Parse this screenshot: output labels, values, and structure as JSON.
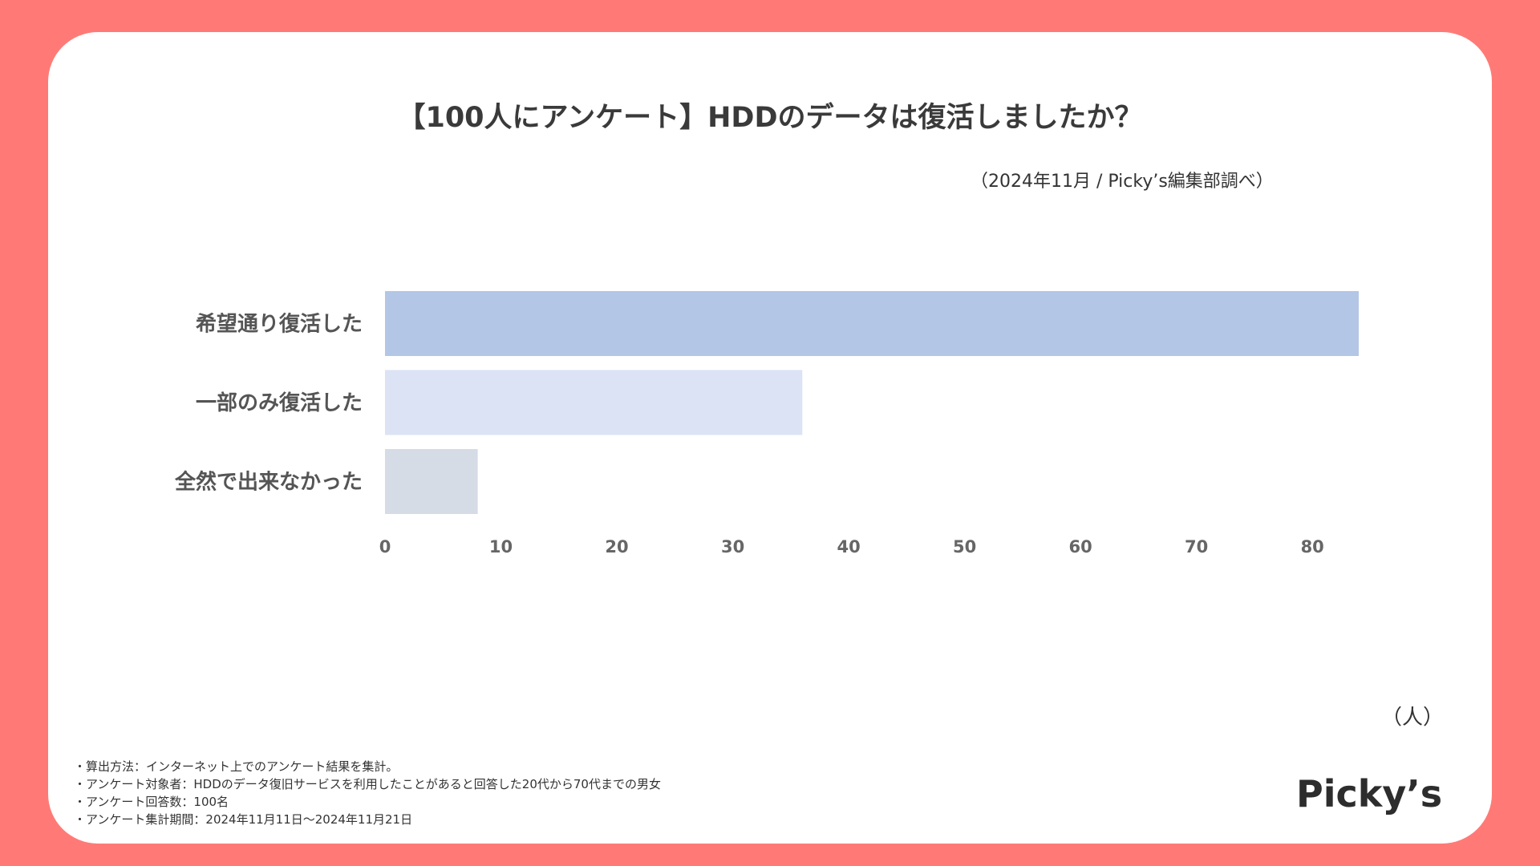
{
  "colors": {
    "background": "#ff7a76",
    "card": "#ffffff",
    "bar_colors": [
      "#b4c6e6",
      "#dbe3f4",
      "#d5dce6"
    ]
  },
  "source_note": "（2024年11月 / Picky’s編集部調べ）",
  "unit_label": "（人）",
  "notes": [
    "・算出方法：インターネット上でのアンケート結果を集計。",
    "・アンケート対象者：HDDのデータ復旧サービスを利用したことがあると回答した20代から70代までの男女",
    "・アンケート回答数：100名",
    "・アンケート集計期間：2024年11月11日～2024年11月21日"
  ],
  "logo_text": "Picky’s",
  "chart_data": {
    "type": "bar",
    "orientation": "horizontal",
    "title": "【100人にアンケート】HDDのデータは復活しましたか？",
    "categories": [
      "希望通り復活した",
      "一部のみ復活した",
      "全然で出来なかった"
    ],
    "values": [
      84,
      36,
      8
    ],
    "xlim": [
      0,
      84
    ],
    "ticks": [
      0,
      10,
      20,
      30,
      40,
      50,
      60,
      70,
      80
    ],
    "xlabel": "",
    "ylabel": "",
    "grid": false
  }
}
